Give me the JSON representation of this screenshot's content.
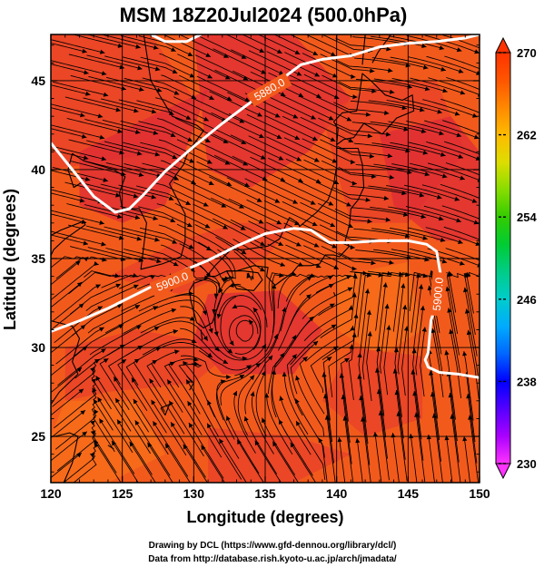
{
  "chart_data": {
    "type": "heatmap",
    "title": "MSM 18Z20Jul2024 (500.0hPa)",
    "xlabel": "Longitude (degrees)",
    "ylabel": "Latitude  (degrees)",
    "xlim": [
      120,
      150
    ],
    "ylim": [
      22.4,
      47.6
    ],
    "x_ticks": [
      120,
      125,
      130,
      135,
      140,
      145,
      150
    ],
    "y_ticks": [
      25,
      30,
      35,
      40,
      45
    ],
    "grid": true,
    "colorbar": {
      "min": 230,
      "max": 270,
      "ticks": [
        230,
        238,
        246,
        254,
        262,
        270
      ],
      "placement": "right",
      "colors": [
        "#ff33ff",
        "#aa00ff",
        "#5500ff",
        "#0000ff",
        "#0066ff",
        "#00aaff",
        "#00cccc",
        "#00cc88",
        "#00cc33",
        "#33cc00",
        "#88dd00",
        "#dddd00",
        "#ffbb00",
        "#ff8800",
        "#ff5500",
        "#ff3300"
      ]
    },
    "field_colors": {
      "base": "#f25a1c",
      "warm": "#e8402a",
      "hot": "#de2c36",
      "cool": "#f7701a"
    },
    "contours": [
      {
        "label": "5900.0",
        "points": [
          [
            120,
            30.9
          ],
          [
            122,
            31.5
          ],
          [
            124,
            32.2
          ],
          [
            126,
            33.0
          ],
          [
            128,
            33.8
          ],
          [
            129.5,
            34.4
          ],
          [
            131,
            34.9
          ],
          [
            133,
            35.7
          ],
          [
            135,
            36.4
          ],
          [
            137,
            36.7
          ],
          [
            138.2,
            36.6
          ],
          [
            139.5,
            35.9
          ],
          [
            141,
            35.9
          ],
          [
            143,
            36.0
          ],
          [
            145,
            36.0
          ],
          [
            146.3,
            35.8
          ],
          [
            147,
            35.4
          ],
          [
            147.3,
            34.0
          ],
          [
            147.0,
            32.5
          ],
          [
            146.6,
            31.5
          ],
          [
            146.5,
            30.5
          ],
          [
            146.4,
            29.7
          ],
          [
            146.2,
            29.3
          ],
          [
            146.4,
            28.9
          ],
          [
            147.2,
            28.6
          ],
          [
            148.5,
            28.5
          ],
          [
            150,
            28.3
          ]
        ]
      },
      {
        "label": "5880.0",
        "points": [
          [
            120,
            41.5
          ],
          [
            121.5,
            40.0
          ],
          [
            123,
            38.5
          ],
          [
            124.5,
            37.6
          ],
          [
            125.5,
            37.8
          ],
          [
            126.5,
            38.6
          ],
          [
            128,
            39.9
          ],
          [
            130,
            41.3
          ],
          [
            132,
            42.6
          ],
          [
            134,
            43.8
          ],
          [
            136,
            45.0
          ],
          [
            137.5,
            45.9
          ],
          [
            139,
            46.2
          ],
          [
            141,
            46.4
          ],
          [
            143,
            46.9
          ],
          [
            145,
            47.1
          ],
          [
            147,
            47.2
          ],
          [
            149,
            47.4
          ],
          [
            150,
            47.6
          ]
        ]
      },
      {
        "label": "",
        "points": [
          [
            127,
            47.6
          ],
          [
            128,
            47.2
          ],
          [
            129.5,
            47.2
          ],
          [
            130.5,
            47.6
          ]
        ]
      }
    ],
    "cyclone_center": [
      133.5,
      30.8
    ]
  },
  "credits": {
    "line1": "Drawing by DCL (https://www.gfd-dennou.org/library/dcl/)",
    "line2": "Data from http://database.rish.kyoto-u.ac.jp/arch/jmadata/"
  }
}
